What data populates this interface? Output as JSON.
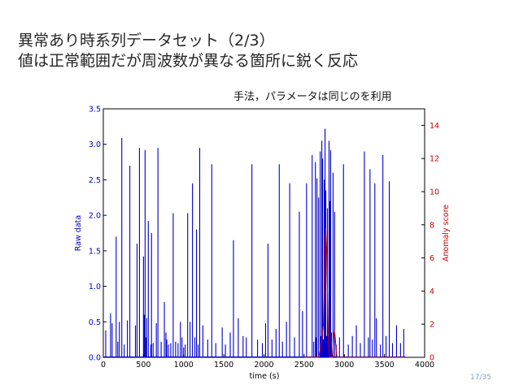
{
  "slide": {
    "title_line1": "異常あり時系列データセット（2/3）",
    "title_line2": "値は正常範囲だが周波数が異なる箇所に鋭く反応",
    "subtitle": "手法，パラメータは同じのを利用",
    "page": "17/35"
  },
  "colors": {
    "raw": "#0000cc",
    "anomaly": "#cc0000",
    "axis": "#000000"
  },
  "chart_data": {
    "type": "line",
    "title": "",
    "xlabel": "time (s)",
    "ylabel": "Raw data",
    "y2label": "Anomaly score",
    "xlim": [
      0,
      4000
    ],
    "ylim": [
      0,
      3.5
    ],
    "y2lim": [
      0,
      15
    ],
    "x_ticks": [
      "0",
      "500",
      "1000",
      "1500",
      "2000",
      "2500",
      "3000",
      "3500",
      "4000"
    ],
    "y_ticks": [
      "0.0",
      "0.5",
      "1.0",
      "1.5",
      "2.0",
      "2.5",
      "3.0",
      "3.5"
    ],
    "y2_ticks": [
      "0",
      "2",
      "4",
      "6",
      "8",
      "10",
      "12",
      "14"
    ],
    "grid": false,
    "series": [
      {
        "name": "Raw data",
        "axis": "left",
        "x": [
          30,
          90,
          110,
          160,
          180,
          200,
          230,
          260,
          300,
          330,
          400,
          420,
          450,
          500,
          510,
          520,
          530,
          540,
          560,
          590,
          600,
          620,
          660,
          680,
          720,
          760,
          780,
          790,
          810,
          840,
          870,
          900,
          930,
          960,
          980,
          1000,
          1020,
          1050,
          1080,
          1110,
          1140,
          1160,
          1180,
          1200,
          1240,
          1300,
          1350,
          1400,
          1480,
          1520,
          1580,
          1620,
          1680,
          1740,
          1780,
          1850,
          1920,
          1980,
          2020,
          2050,
          2100,
          2150,
          2190,
          2230,
          2280,
          2320,
          2380,
          2440,
          2480,
          2530,
          2600,
          2620,
          2640,
          2650,
          2660,
          2680,
          2700,
          2710,
          2720,
          2730,
          2740,
          2750,
          2760,
          2770,
          2780,
          2790,
          2800,
          2810,
          2820,
          2830,
          2840,
          2860,
          2880,
          2900,
          2940,
          2990,
          3050,
          3100,
          3150,
          3200,
          3250,
          3300,
          3320,
          3350,
          3380,
          3400,
          3450,
          3480,
          3520,
          3560,
          3600,
          3650,
          3700,
          3740
        ],
        "y": [
          0.38,
          0.62,
          0.48,
          1.7,
          0.22,
          0.5,
          3.09,
          0.18,
          0.52,
          2.7,
          0.45,
          1.6,
          2.95,
          1.42,
          0.6,
          2.92,
          0.28,
          0.55,
          1.92,
          0.18,
          1.75,
          0.2,
          0.48,
          2.95,
          0.22,
          0.78,
          0.35,
          0.25,
          0.18,
          0.2,
          2.03,
          0.22,
          0.2,
          0.5,
          0.28,
          0.14,
          0.18,
          2.03,
          0.5,
          2.45,
          0.28,
          1.8,
          0.18,
          2.95,
          0.45,
          0.25,
          2.72,
          0.2,
          0.42,
          0.18,
          0.35,
          1.65,
          0.55,
          0.3,
          0.28,
          2.72,
          0.25,
          0.2,
          0.48,
          1.6,
          0.25,
          0.4,
          2.72,
          0.22,
          0.5,
          2.45,
          0.28,
          2.05,
          0.65,
          2.45,
          2.85,
          0.22,
          2.75,
          0.28,
          2.52,
          2.25,
          2.9,
          0.3,
          3.05,
          2.8,
          0.25,
          2.5,
          3.22,
          2.35,
          0.3,
          2.1,
          0.3,
          3.05,
          2.2,
          2.92,
          0.35,
          2.6,
          2.05,
          0.18,
          0.28,
          2.72,
          0.18,
          0.3,
          0.45,
          0.2,
          2.9,
          0.28,
          2.65,
          0.25,
          2.45,
          0.55,
          0.18,
          2.85,
          0.3,
          2.48,
          0.2,
          0.45,
          0.2,
          0.4
        ]
      },
      {
        "name": "Anomaly score",
        "axis": "right",
        "x": [
          2500,
          2680,
          2700,
          2720,
          2740,
          2750,
          2760,
          2770,
          2780,
          2790,
          2800,
          2810,
          2820,
          2830,
          2840,
          2850,
          2860,
          2870,
          2880,
          2890,
          2900,
          2910,
          2920,
          2930,
          2940,
          2950,
          2960,
          3000,
          3500,
          3750
        ],
        "y": [
          0,
          0,
          0.4,
          1.0,
          2.0,
          4.0,
          7.0,
          7.8,
          6.5,
          4.0,
          1.5,
          0.5,
          0,
          0,
          0,
          0,
          0.6,
          1.4,
          1.6,
          1.0,
          0.4,
          0,
          0,
          0,
          0,
          0,
          0,
          0,
          0,
          0
        ]
      }
    ]
  }
}
